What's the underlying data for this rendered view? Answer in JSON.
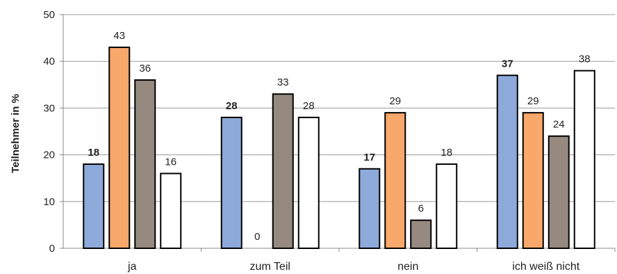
{
  "chart_data": {
    "type": "bar",
    "categories": [
      "ja",
      "zum Teil",
      "nein",
      "ich weiß nicht"
    ],
    "series": [
      {
        "values": [
          18,
          28,
          17,
          37
        ],
        "color": "#8eaadb",
        "label_bold": true
      },
      {
        "values": [
          43,
          0,
          29,
          29
        ],
        "color": "#f9a86b",
        "label_bold": false
      },
      {
        "values": [
          36,
          33,
          6,
          24
        ],
        "color": "#968a80",
        "label_bold": false
      },
      {
        "values": [
          16,
          28,
          18,
          38
        ],
        "color": "#ffffff",
        "label_bold": false
      }
    ],
    "value_labels": [
      [
        "18",
        "28",
        "17",
        "37"
      ],
      [
        "43",
        "0",
        "29",
        "29"
      ],
      [
        "36",
        "33",
        "6",
        "24"
      ],
      [
        "16",
        "28",
        "18",
        "38"
      ]
    ],
    "yticks": [
      "0",
      "10",
      "20",
      "30",
      "40",
      "50"
    ],
    "ylabel": "Teilnehmer  in %",
    "xlabel": "",
    "ylim": [
      0,
      50
    ],
    "grid": true,
    "legend": "none"
  }
}
